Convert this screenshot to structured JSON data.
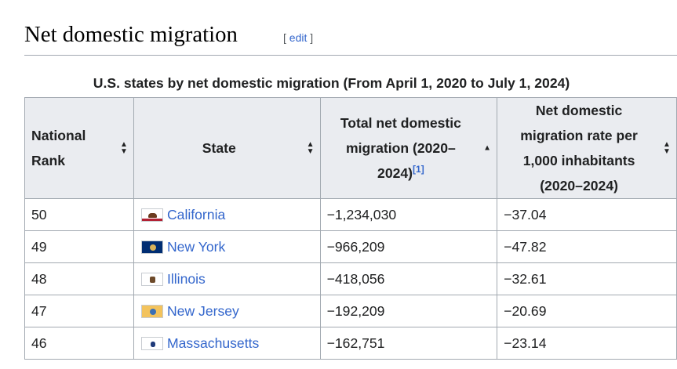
{
  "section": {
    "title": "Net domestic migration",
    "edit_open": "[ ",
    "edit_label": "edit",
    "edit_close": " ]"
  },
  "table": {
    "caption": "U.S. states by net domestic migration (From April 1, 2020 to July 1, 2024)",
    "headers": {
      "rank_line1": "National",
      "rank_line2": "Rank",
      "state": "State",
      "total_line1": "Total net domestic",
      "total_line2": "migration (2020–",
      "total_line3": "2024)",
      "total_ref": "[1]",
      "rate_line1": "Net domestic",
      "rate_line2": "migration rate per",
      "rate_line3": "1,000 inhabitants",
      "rate_line4": "(2020–2024)"
    },
    "rows": [
      {
        "rank": "50",
        "state": "California",
        "flag": "california-flag-icon",
        "total": "−1,234,030",
        "rate": "−37.04"
      },
      {
        "rank": "49",
        "state": "New York",
        "flag": "new-york-flag-icon",
        "total": "−966,209",
        "rate": "−47.82"
      },
      {
        "rank": "48",
        "state": "Illinois",
        "flag": "illinois-flag-icon",
        "total": "−418,056",
        "rate": "−32.61"
      },
      {
        "rank": "47",
        "state": "New Jersey",
        "flag": "new-jersey-flag-icon",
        "total": "−192,209",
        "rate": "−20.69"
      },
      {
        "rank": "46",
        "state": "Massachusetts",
        "flag": "massachusetts-flag-icon",
        "total": "−162,751",
        "rate": "−23.14"
      }
    ],
    "sort_state": {
      "rank": "unsorted",
      "state": "unsorted",
      "total": "ascending",
      "rate": "unsorted"
    }
  },
  "colors": {
    "link": "#3366cc",
    "header_bg": "#eaecf0",
    "border": "#a2a9b1"
  }
}
